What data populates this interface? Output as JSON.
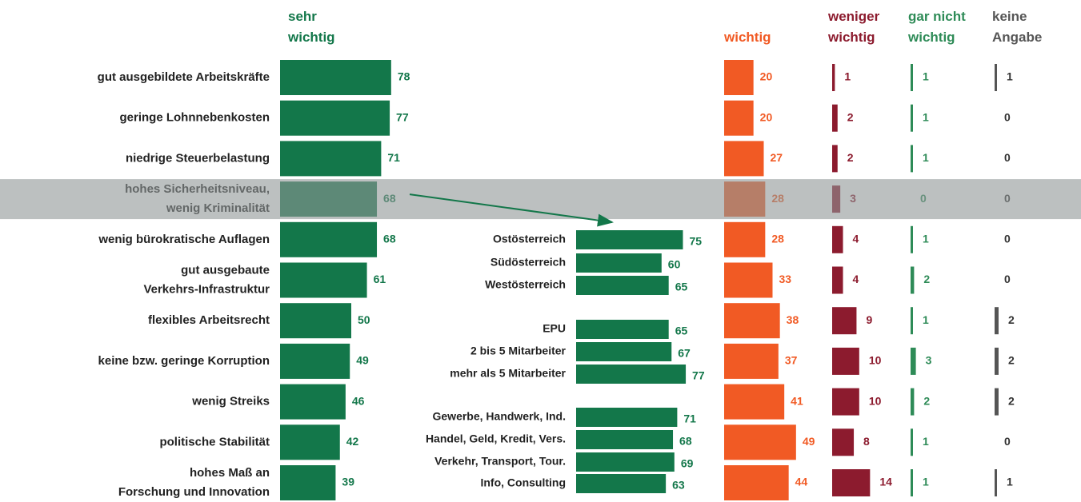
{
  "chart_data": [
    {
      "type": "bar",
      "orientation": "horizontal",
      "highlight": 3,
      "categories": [
        [
          "gut ausgebildete Arbeitskräfte"
        ],
        [
          "geringe Lohnnebenkosten"
        ],
        [
          "niedrige Steuerbelastung"
        ],
        [
          "hohes Sicherheitsniveau,",
          "wenig Kriminalität"
        ],
        [
          "wenig bürokratische Auflagen"
        ],
        [
          "gut ausgebaute",
          "Verkehrs-Infrastruktur"
        ],
        [
          "flexibles Arbeitsrecht"
        ],
        [
          "keine bzw. geringe Korruption"
        ],
        [
          "wenig Streiks"
        ],
        [
          "politische Stabilität"
        ],
        [
          "hohes Maß an",
          "Forschung und Innovation"
        ]
      ],
      "series": [
        {
          "name": "sehr wichtig",
          "color": "#13774a",
          "values": [
            78,
            77,
            71,
            68,
            68,
            61,
            50,
            49,
            46,
            42,
            39
          ]
        },
        {
          "name": "wichtig",
          "color": "#f15a24",
          "values": [
            20,
            20,
            27,
            28,
            28,
            33,
            38,
            37,
            41,
            49,
            44
          ]
        },
        {
          "name": "weniger wichtig",
          "color": "#8c1b2e",
          "values": [
            1,
            2,
            2,
            3,
            4,
            4,
            9,
            10,
            10,
            8,
            14
          ]
        },
        {
          "name": "gar nicht wichtig",
          "color": "#2e8b57",
          "values": [
            1,
            1,
            1,
            0,
            1,
            2,
            1,
            3,
            2,
            1,
            1
          ]
        },
        {
          "name": "keine Angabe",
          "color": "#555555",
          "values": [
            1,
            0,
            0,
            0,
            0,
            0,
            2,
            2,
            2,
            0,
            1
          ]
        }
      ]
    },
    {
      "type": "bar",
      "orientation": "horizontal",
      "color": "#13774a",
      "categories": [
        "Ostösterreich",
        "Südösterreich",
        "Westösterreich",
        "EPU",
        "2 bis 5 Mitarbeiter",
        "mehr als 5 Mitarbeiter",
        "Gewerbe, Handwerk, Ind.",
        "Handel, Geld, Kredit, Vers.",
        "Verkehr, Transport, Tour.",
        "Info, Consulting"
      ],
      "values": [
        75,
        60,
        65,
        65,
        67,
        77,
        71,
        68,
        69,
        63
      ]
    }
  ]
}
